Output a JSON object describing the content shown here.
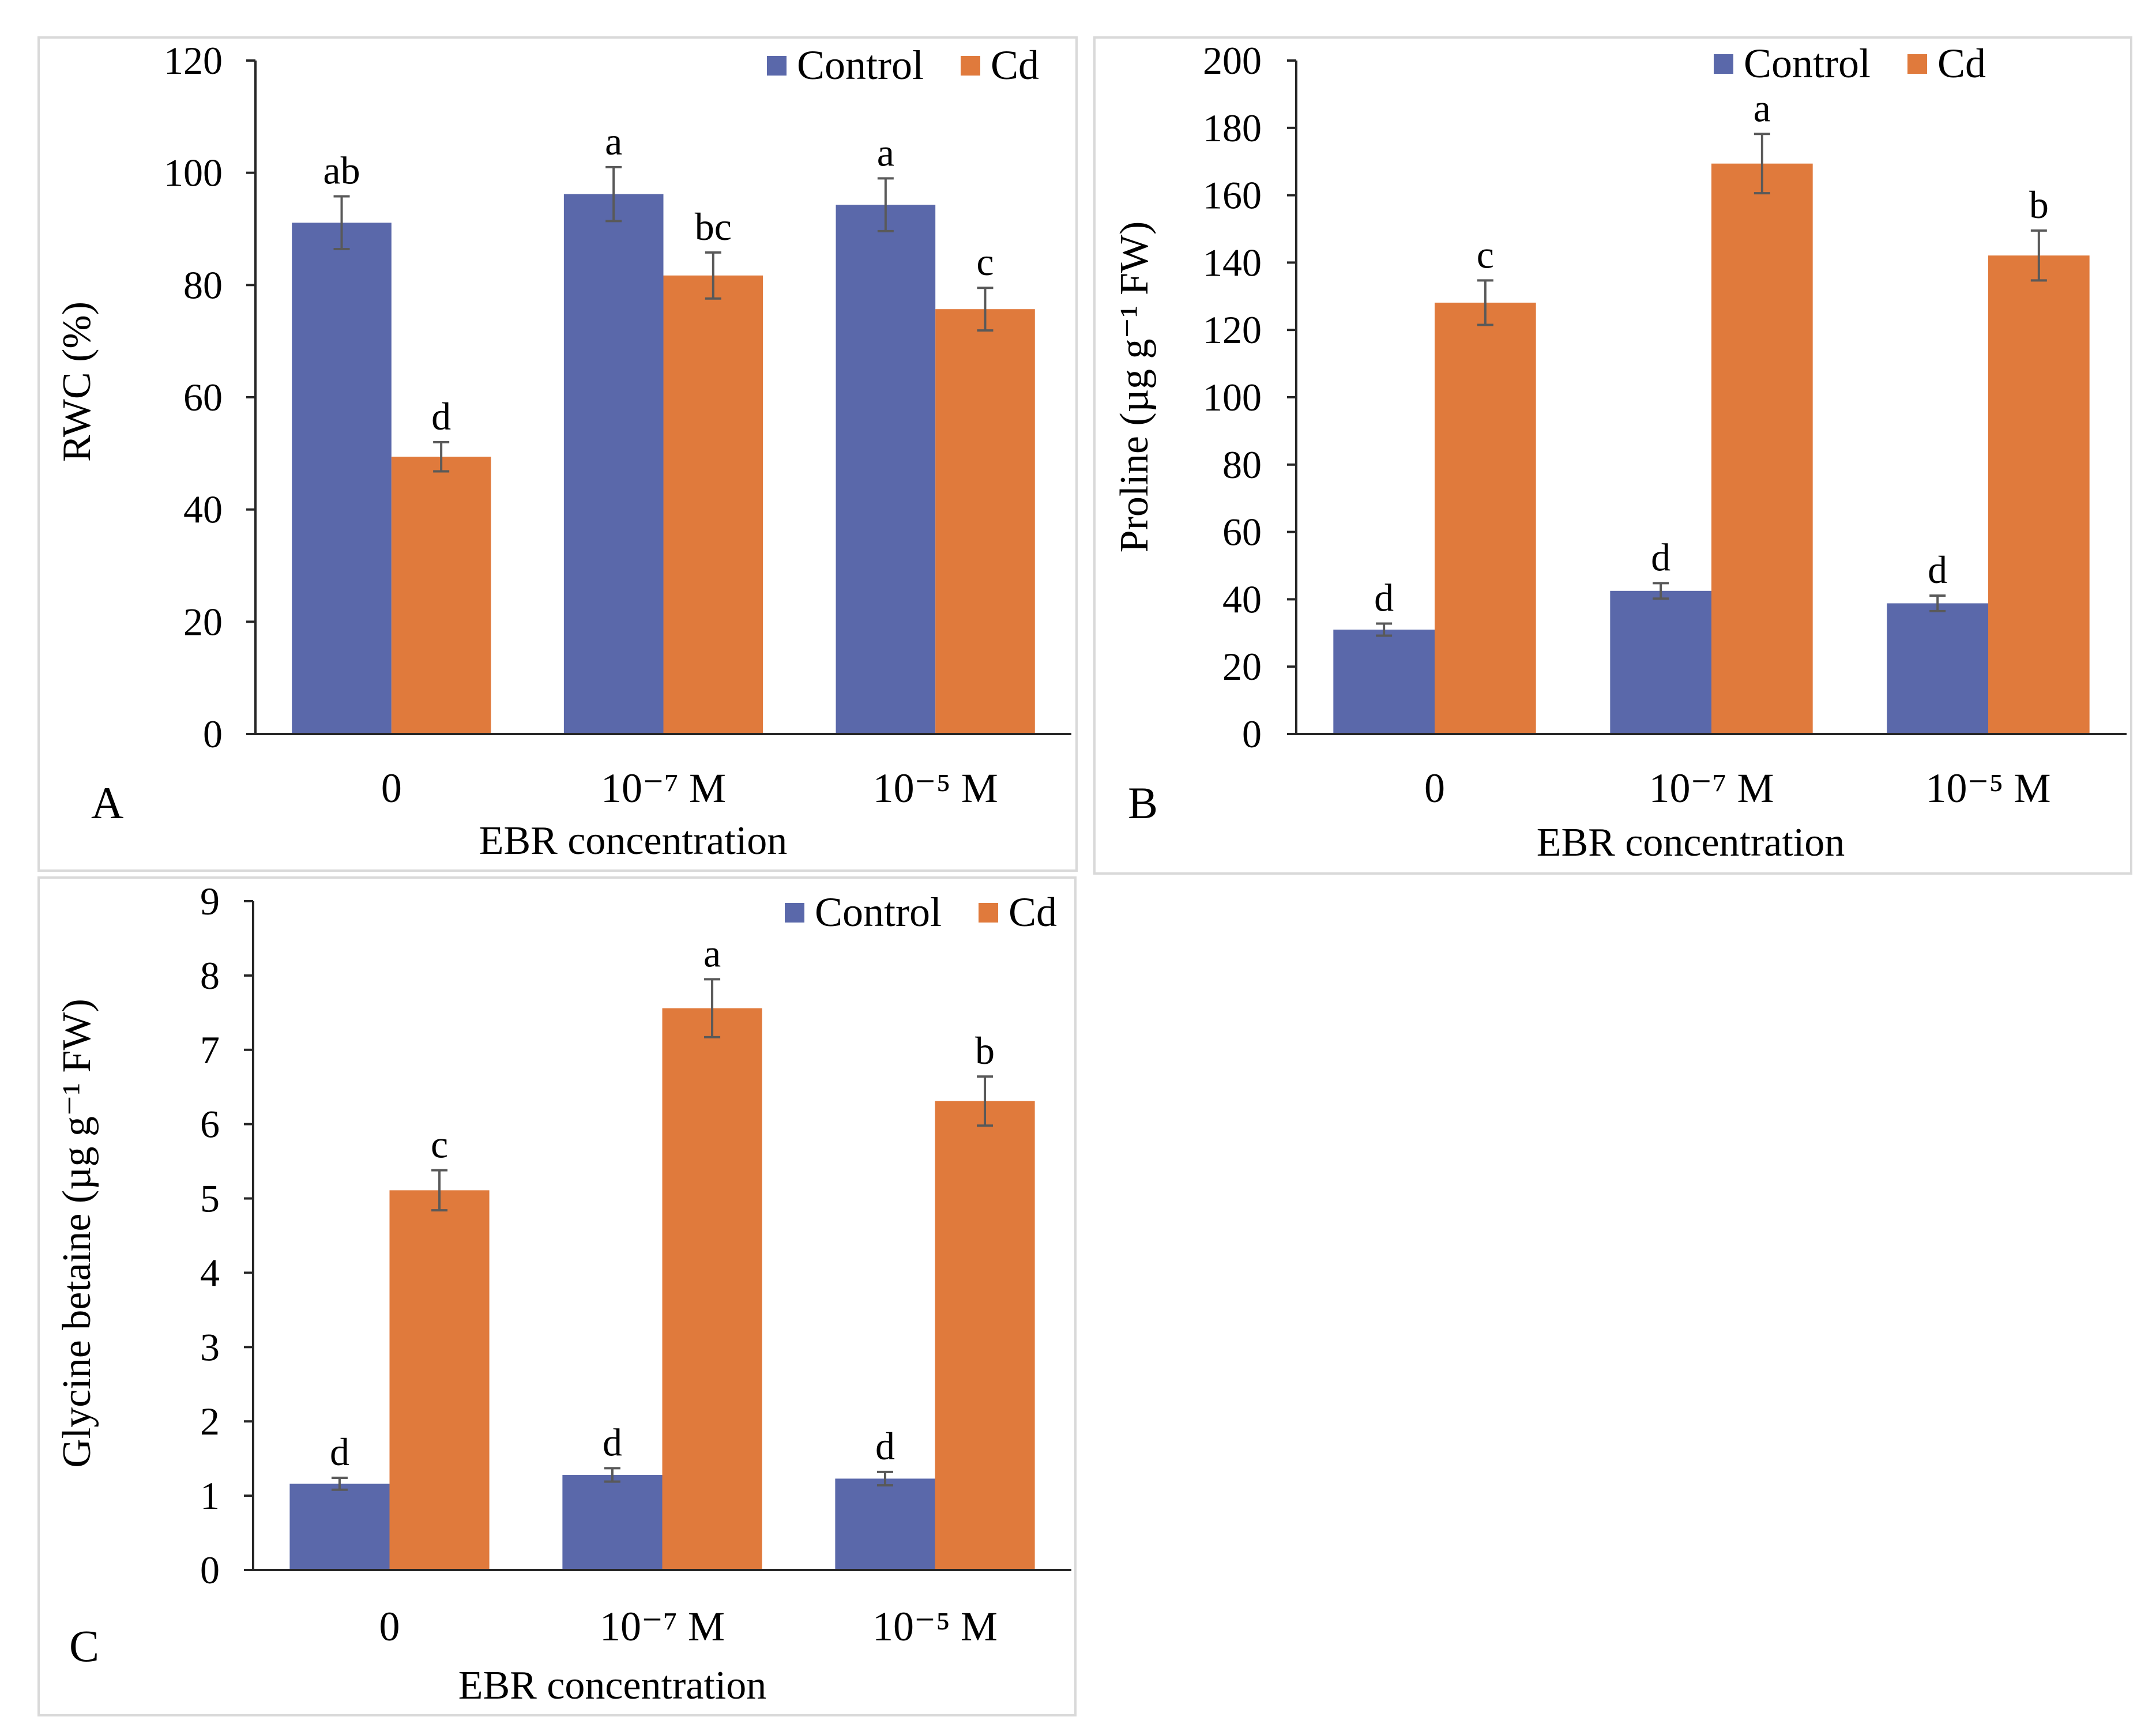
{
  "chart_data": [
    {
      "panel_label": "A",
      "type": "bar",
      "xlabel": "EBR concentration",
      "ylabel": "RWC (%)",
      "ylim": [
        0,
        120
      ],
      "yticks": [
        0,
        20,
        40,
        60,
        80,
        100,
        120
      ],
      "categories": [
        "0",
        "10⁻⁷ M",
        "10⁻⁵ M"
      ],
      "grid": false,
      "legend_position": "top-right",
      "series": [
        {
          "name": "Control",
          "color": "#5a68aa",
          "values": [
            91.1,
            96.2,
            94.3
          ],
          "errors": [
            4.7,
            4.8,
            4.7
          ],
          "letters": [
            "ab",
            "a",
            "a"
          ]
        },
        {
          "name": "Cd",
          "color": "#e07a3c",
          "values": [
            49.4,
            81.7,
            75.7
          ],
          "errors": [
            2.6,
            4.1,
            3.8
          ],
          "letters": [
            "d",
            "bc",
            "c"
          ]
        }
      ]
    },
    {
      "panel_label": "B",
      "type": "bar",
      "xlabel": "EBR concentration",
      "ylabel": "Proline (µg g⁻¹ FW)",
      "ylim": [
        0,
        200
      ],
      "yticks": [
        0,
        20,
        40,
        60,
        80,
        100,
        120,
        140,
        160,
        180,
        200
      ],
      "categories": [
        "0",
        "10⁻⁷ M",
        "10⁻⁵ M"
      ],
      "grid": false,
      "legend_position": "top-right",
      "series": [
        {
          "name": "Control",
          "color": "#5a68aa",
          "values": [
            31.0,
            42.5,
            38.8
          ],
          "errors": [
            1.8,
            2.3,
            2.3
          ],
          "letters": [
            "d",
            "d",
            "d"
          ]
        },
        {
          "name": "Cd",
          "color": "#e07a3c",
          "values": [
            128.1,
            169.4,
            142.1
          ],
          "errors": [
            6.6,
            8.8,
            7.4
          ],
          "letters": [
            "c",
            "a",
            "b"
          ]
        }
      ]
    },
    {
      "panel_label": "C",
      "type": "bar",
      "xlabel": "EBR concentration",
      "ylabel": "Glycine betaine (µg g⁻¹ FW)",
      "ylim": [
        0,
        9
      ],
      "yticks": [
        0,
        1,
        2,
        3,
        4,
        5,
        6,
        7,
        8,
        9
      ],
      "categories": [
        "0",
        "10⁻⁷ M",
        "10⁻⁵ M"
      ],
      "grid": false,
      "legend_position": "top-right",
      "series": [
        {
          "name": "Control",
          "color": "#5a68aa",
          "values": [
            1.16,
            1.28,
            1.23
          ],
          "errors": [
            0.08,
            0.09,
            0.09
          ],
          "letters": [
            "d",
            "d",
            "d"
          ]
        },
        {
          "name": "Cd",
          "color": "#e07a3c",
          "values": [
            5.11,
            7.56,
            6.31
          ],
          "errors": [
            0.27,
            0.39,
            0.33
          ],
          "letters": [
            "c",
            "a",
            "b"
          ]
        }
      ]
    }
  ]
}
